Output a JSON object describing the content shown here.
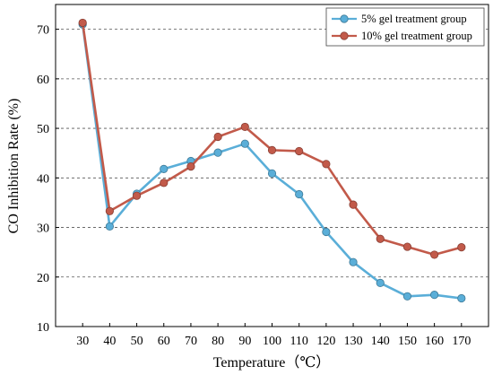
{
  "chart_data": {
    "type": "line",
    "xlabel": "Temperature（℃）",
    "ylabel": "CO Inhibition Rate (%)",
    "x": [
      30,
      40,
      50,
      60,
      70,
      80,
      90,
      100,
      110,
      120,
      130,
      140,
      150,
      160,
      170
    ],
    "xlim": [
      20,
      180
    ],
    "ylim": [
      10,
      75
    ],
    "yticks": [
      10,
      20,
      30,
      40,
      50,
      60,
      70
    ],
    "grid": "horizontal dashed",
    "legend_position": "top-right",
    "series": [
      {
        "name": "5% gel treatment group",
        "color": "#5aaed8",
        "values": [
          71.0,
          30.2,
          36.8,
          41.8,
          43.4,
          45.1,
          46.9,
          40.9,
          36.7,
          29.1,
          23.0,
          18.8,
          16.1,
          16.4,
          15.7
        ]
      },
      {
        "name": "10% gel treatment group",
        "color": "#c25a4a",
        "values": [
          71.3,
          33.3,
          36.4,
          39.0,
          42.3,
          48.3,
          50.3,
          45.6,
          45.4,
          42.8,
          34.6,
          27.7,
          26.1,
          24.5,
          26.0
        ]
      }
    ]
  }
}
